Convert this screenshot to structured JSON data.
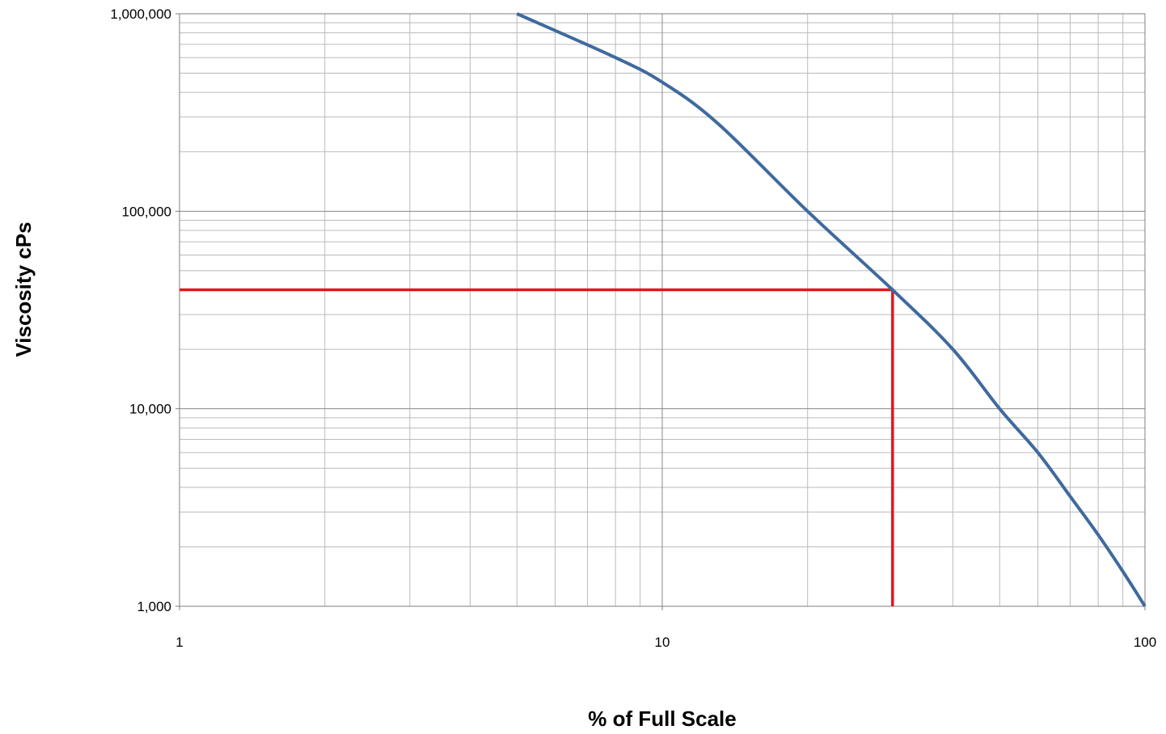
{
  "chart_data": {
    "type": "line",
    "xlabel": "% of Full Scale",
    "ylabel": "Viscosity cPs",
    "x_scale": "log",
    "y_scale": "log",
    "xlim": [
      1,
      100
    ],
    "ylim": [
      1000,
      1000000
    ],
    "grid": true,
    "legend": "none",
    "x_ticks": [
      {
        "value": 1,
        "label": "1"
      },
      {
        "value": 10,
        "label": "10"
      },
      {
        "value": 100,
        "label": "100"
      }
    ],
    "y_ticks": [
      {
        "value": 1000,
        "label": "1,000"
      },
      {
        "value": 10000,
        "label": "10,000"
      },
      {
        "value": 100000,
        "label": "100,000"
      },
      {
        "value": 1000000,
        "label": "1,000,000"
      }
    ],
    "series": [
      {
        "color": "#3F6A9E",
        "points": [
          {
            "x": 5,
            "y": 1000000
          },
          {
            "x": 8,
            "y": 600000
          },
          {
            "x": 10,
            "y": 450000
          },
          {
            "x": 13,
            "y": 280000
          },
          {
            "x": 20,
            "y": 100000
          },
          {
            "x": 30,
            "y": 40000
          },
          {
            "x": 40,
            "y": 20000
          },
          {
            "x": 50,
            "y": 10000
          },
          {
            "x": 60,
            "y": 6000
          },
          {
            "x": 70,
            "y": 3600
          },
          {
            "x": 80,
            "y": 2300
          },
          {
            "x": 90,
            "y": 1500
          },
          {
            "x": 100,
            "y": 1000
          }
        ]
      }
    ],
    "reference_lines": [
      {
        "color": "#E8141B",
        "points": [
          {
            "x": 1,
            "y": 40000
          },
          {
            "x": 30,
            "y": 40000
          },
          {
            "x": 30,
            "y": 1000
          }
        ]
      }
    ]
  },
  "colors": {
    "grid_major": "#888888",
    "grid_minor": "#BBBBBB",
    "axis": "#7F7F7F",
    "series": "#3F6A9E",
    "reference": "#E8141B"
  }
}
